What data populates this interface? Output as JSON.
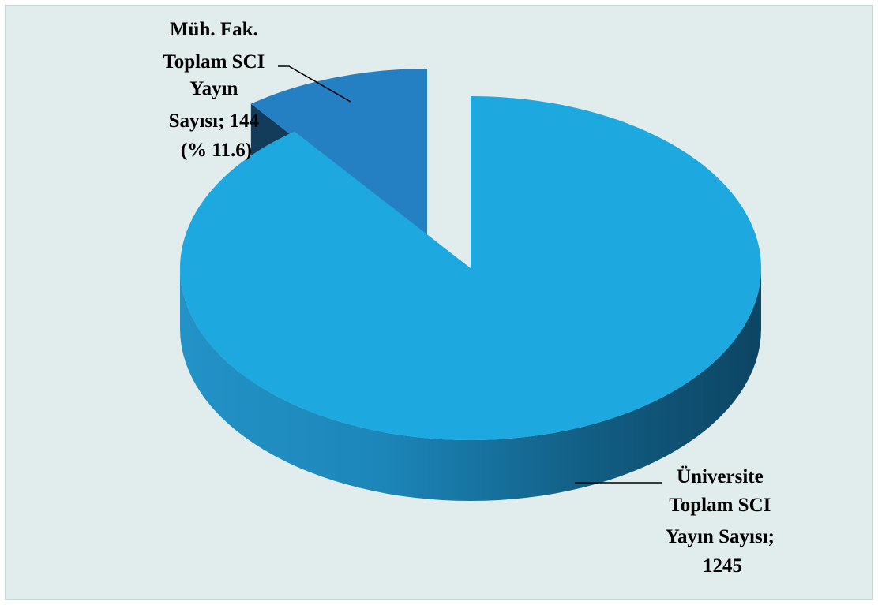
{
  "chart_data": {
    "type": "pie",
    "style": "3d-exploded",
    "slices": [
      {
        "category": "Üniversite Toplam SCI Yayın Sayısı",
        "value": 1245,
        "color": "#1ea8e0",
        "label_lines": [
          "Üniversite",
          "Toplam SCI",
          "Yayın Sayısı;",
          "1245"
        ]
      },
      {
        "category": "Müh. Fak. Toplam SCI Yayın Sayısı",
        "value": 144,
        "percent_label": "% 11.6",
        "color": "#2580c3",
        "exploded": true,
        "label_lines": [
          "Müh. Fak.",
          "Toplam SCI",
          "Yayın",
          "Sayısı; 144",
          "(% 11.6)"
        ]
      }
    ],
    "legend": "none",
    "background_color": "#e1eced"
  }
}
